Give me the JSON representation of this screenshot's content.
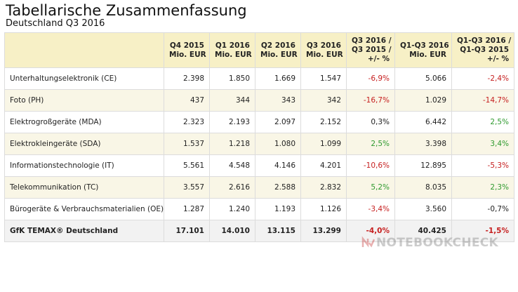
{
  "title": "Tabellarische Zusammenfassung",
  "subtitle": "Deutschland Q3 2016",
  "table": {
    "headers": [
      {
        "line1": "",
        "line2": "",
        "line3": ""
      },
      {
        "line1": "Q4 2015",
        "line2": "Mio. EUR",
        "line3": ""
      },
      {
        "line1": "Q1 2016",
        "line2": "Mio. EUR",
        "line3": ""
      },
      {
        "line1": "Q2 2016",
        "line2": "Mio. EUR",
        "line3": ""
      },
      {
        "line1": "Q3 2016",
        "line2": "Mio. EUR",
        "line3": ""
      },
      {
        "line1": "Q3 2016 /",
        "line2": "Q3 2015 /",
        "line3": "+/- %"
      },
      {
        "line1": "Q1-Q3 2016",
        "line2": "Mio. EUR",
        "line3": ""
      },
      {
        "line1": "Q1-Q3 2016 /",
        "line2": "Q1-Q3 2015",
        "line3": "+/- %"
      }
    ],
    "rows": [
      {
        "label": "Unterhaltungselektronik (CE)",
        "q4_2015": "2.398",
        "q1_2016": "1.850",
        "q2_2016": "1.669",
        "q3_2016": "1.547",
        "q3_change": "-6,9%",
        "q3_change_trend": "neg",
        "q1q3_2016": "5.066",
        "q1q3_change": "-2,4%",
        "q1q3_change_trend": "neg"
      },
      {
        "label": "Foto (PH)",
        "q4_2015": "437",
        "q1_2016": "344",
        "q2_2016": "343",
        "q3_2016": "342",
        "q3_change": "-16,7%",
        "q3_change_trend": "neg",
        "q1q3_2016": "1.029",
        "q1q3_change": "-14,7%",
        "q1q3_change_trend": "neg"
      },
      {
        "label": "Elektrogroßgeräte (MDA)",
        "q4_2015": "2.323",
        "q1_2016": "2.193",
        "q2_2016": "2.097",
        "q3_2016": "2.152",
        "q3_change": "0,3%",
        "q3_change_trend": "neu",
        "q1q3_2016": "6.442",
        "q1q3_change": "2,5%",
        "q1q3_change_trend": "pos"
      },
      {
        "label": "Elektrokleingeräte (SDA)",
        "q4_2015": "1.537",
        "q1_2016": "1.218",
        "q2_2016": "1.080",
        "q3_2016": "1.099",
        "q3_change": "2,5%",
        "q3_change_trend": "pos",
        "q1q3_2016": "3.398",
        "q1q3_change": "3,4%",
        "q1q3_change_trend": "pos"
      },
      {
        "label": "Informationstechnologie (IT)",
        "q4_2015": "5.561",
        "q1_2016": "4.548",
        "q2_2016": "4.146",
        "q3_2016": "4.201",
        "q3_change": "-10,6%",
        "q3_change_trend": "neg",
        "q1q3_2016": "12.895",
        "q1q3_change": "-5,3%",
        "q1q3_change_trend": "neg"
      },
      {
        "label": "Telekommunikation (TC)",
        "q4_2015": "3.557",
        "q1_2016": "2.616",
        "q2_2016": "2.588",
        "q3_2016": "2.832",
        "q3_change": "5,2%",
        "q3_change_trend": "pos",
        "q1q3_2016": "8.035",
        "q1q3_change": "2,3%",
        "q1q3_change_trend": "pos"
      },
      {
        "label": "Bürogeräte & Verbrauchsmaterialien (OE)",
        "q4_2015": "1.287",
        "q1_2016": "1.240",
        "q2_2016": "1.193",
        "q3_2016": "1.126",
        "q3_change": "-3,4%",
        "q3_change_trend": "neg",
        "q1q3_2016": "3.560",
        "q1q3_change": "-0,7%",
        "q1q3_change_trend": "neu"
      }
    ],
    "total": {
      "label": "GfK TEMAX® Deutschland",
      "q4_2015": "17.101",
      "q1_2016": "14.010",
      "q2_2016": "13.115",
      "q3_2016": "13.299",
      "q3_change": "-4,0%",
      "q3_change_trend": "neg",
      "q1q3_2016": "40.425",
      "q1q3_change": "-1,5%",
      "q1q3_change_trend": "neg"
    }
  },
  "colors": {
    "header_bg": "#f7f0c6",
    "alt_row_bg": "#f9f6e6",
    "negative": "#c62020",
    "positive": "#2f9a2f"
  },
  "watermark": {
    "text": "NOTEBOOKCHECK",
    "icon": "notebookcheck-logo-icon"
  }
}
